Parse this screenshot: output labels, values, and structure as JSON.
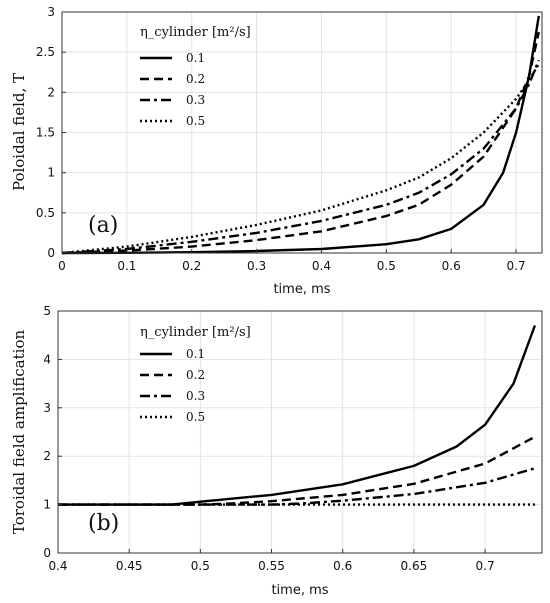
{
  "chart_data": [
    {
      "panel": "(a)",
      "type": "line",
      "xlabel": "time, ms",
      "ylabel": "Poloidal field, T",
      "xlim": [
        0,
        0.74
      ],
      "ylim": [
        0,
        3
      ],
      "xticks": [
        0,
        0.1,
        0.2,
        0.3,
        0.4,
        0.5,
        0.6,
        0.7
      ],
      "xtick_labels": [
        "0",
        "0.1",
        "0.2",
        "0.3",
        "0.4",
        "0.5",
        "0.6",
        "0.7"
      ],
      "yticks": [
        0,
        0.5,
        1,
        1.5,
        2,
        2.5,
        3
      ],
      "ytick_labels": [
        "0",
        "0.5",
        "1",
        "1.5",
        "2",
        "2.5",
        "3"
      ],
      "grid": true,
      "legend_title": "η_cylinder [m²/s]",
      "legend_placement": "top-left",
      "series": [
        {
          "name": "0.1",
          "style": "solid",
          "x": [
            0,
            0.1,
            0.2,
            0.3,
            0.4,
            0.5,
            0.55,
            0.6,
            0.65,
            0.68,
            0.7,
            0.72,
            0.735
          ],
          "y": [
            0,
            0.003,
            0.01,
            0.025,
            0.05,
            0.11,
            0.17,
            0.3,
            0.6,
            1.0,
            1.5,
            2.2,
            2.95
          ]
        },
        {
          "name": "0.2",
          "style": "dashed",
          "x": [
            0,
            0.1,
            0.2,
            0.3,
            0.4,
            0.5,
            0.55,
            0.6,
            0.65,
            0.7,
            0.72,
            0.735
          ],
          "y": [
            0,
            0.03,
            0.08,
            0.16,
            0.27,
            0.46,
            0.6,
            0.85,
            1.2,
            1.8,
            2.2,
            2.75
          ]
        },
        {
          "name": "0.3",
          "style": "dashdot",
          "x": [
            0,
            0.1,
            0.2,
            0.3,
            0.4,
            0.5,
            0.55,
            0.6,
            0.65,
            0.7,
            0.72,
            0.735
          ],
          "y": [
            0,
            0.05,
            0.14,
            0.25,
            0.4,
            0.6,
            0.75,
            0.98,
            1.3,
            1.8,
            2.1,
            2.4
          ]
        },
        {
          "name": "0.5",
          "style": "dotted",
          "x": [
            0,
            0.1,
            0.2,
            0.3,
            0.4,
            0.5,
            0.55,
            0.6,
            0.65,
            0.7,
            0.72,
            0.735
          ],
          "y": [
            0,
            0.08,
            0.2,
            0.35,
            0.53,
            0.78,
            0.94,
            1.18,
            1.5,
            1.92,
            2.15,
            2.35
          ]
        }
      ]
    },
    {
      "panel": "(b)",
      "type": "line",
      "xlabel": "time, ms",
      "ylabel": "Toroidal field amplification",
      "xlim": [
        0.4,
        0.74
      ],
      "ylim": [
        0,
        5
      ],
      "xticks": [
        0.4,
        0.45,
        0.5,
        0.55,
        0.6,
        0.65,
        0.7
      ],
      "xtick_labels": [
        "0.4",
        "0.45",
        "0.5",
        "0.55",
        "0.6",
        "0.65",
        "0.7"
      ],
      "yticks": [
        0,
        1,
        2,
        3,
        4,
        5
      ],
      "ytick_labels": [
        "0",
        "1",
        "2",
        "3",
        "4",
        "5"
      ],
      "grid": true,
      "legend_title": "η_cylinder [m²/s]",
      "legend_placement": "top-left",
      "series": [
        {
          "name": "0.1",
          "style": "solid",
          "x": [
            0.4,
            0.45,
            0.48,
            0.5,
            0.55,
            0.6,
            0.65,
            0.68,
            0.7,
            0.72,
            0.735
          ],
          "y": [
            1,
            1,
            1,
            1.06,
            1.2,
            1.42,
            1.8,
            2.2,
            2.65,
            3.5,
            4.7
          ]
        },
        {
          "name": "0.2",
          "style": "dashed",
          "x": [
            0.4,
            0.45,
            0.5,
            0.52,
            0.55,
            0.6,
            0.65,
            0.7,
            0.735
          ],
          "y": [
            1,
            1,
            1,
            1.02,
            1.07,
            1.2,
            1.43,
            1.85,
            2.4
          ]
        },
        {
          "name": "0.3",
          "style": "dashdot",
          "x": [
            0.4,
            0.45,
            0.5,
            0.55,
            0.57,
            0.6,
            0.65,
            0.7,
            0.735
          ],
          "y": [
            1,
            1,
            1,
            1,
            1.02,
            1.08,
            1.22,
            1.45,
            1.75
          ]
        },
        {
          "name": "0.5",
          "style": "dotted",
          "x": [
            0.4,
            0.5,
            0.6,
            0.7,
            0.735
          ],
          "y": [
            1,
            1,
            1,
            1,
            1
          ]
        }
      ]
    }
  ]
}
